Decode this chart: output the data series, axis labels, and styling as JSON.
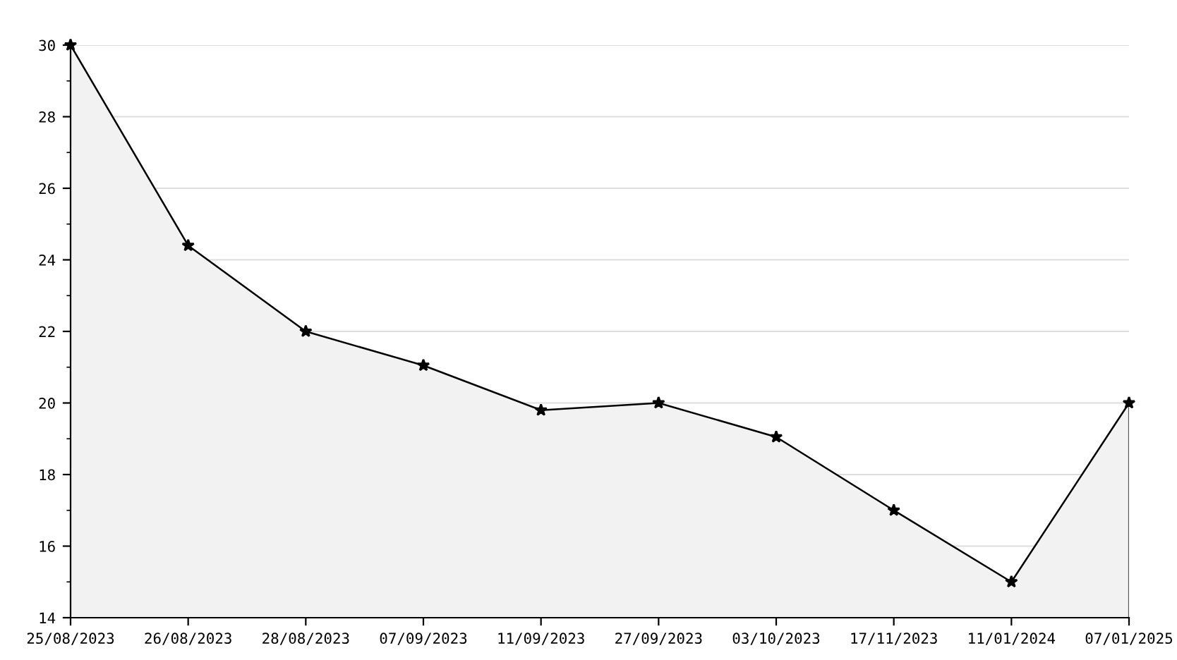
{
  "chart_data": {
    "type": "area",
    "categories": [
      "25/08/2023",
      "26/08/2023",
      "28/08/2023",
      "07/09/2023",
      "11/09/2023",
      "27/09/2023",
      "03/10/2023",
      "17/11/2023",
      "11/01/2024",
      "07/01/2025"
    ],
    "series": [
      {
        "color": "#000000",
        "values": [
          30,
          24.4,
          22,
          21.05,
          19.8,
          20,
          19.05,
          17,
          15,
          20
        ]
      }
    ],
    "ylim": [
      14,
      30
    ],
    "yticks": [
      14,
      {
        "value": 15,
        "label": null
      },
      16,
      {
        "value": 17,
        "label": null
      },
      18,
      {
        "value": 19,
        "label": null
      },
      20,
      {
        "value": 21,
        "label": null
      },
      22,
      {
        "value": 23,
        "label": null
      },
      24,
      {
        "value": 25,
        "label": null
      },
      26,
      {
        "value": 27,
        "label": null
      },
      28,
      {
        "value": 29,
        "label": null
      },
      30
    ],
    "grid": "y",
    "marker": "star",
    "line_style": "solid"
  }
}
